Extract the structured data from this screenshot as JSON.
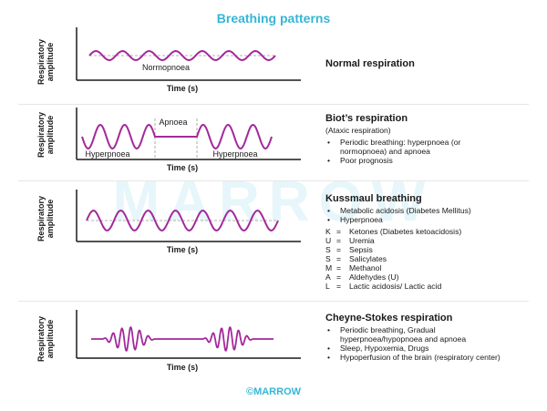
{
  "title": "Breathing patterns",
  "watermark": "MARROW",
  "footer": "©MARROW",
  "colors": {
    "accent": "#35b6d6",
    "wave": "#a3299b",
    "axis": "#1a1a1a"
  },
  "axis": {
    "y_label_line1": "Respiratory",
    "y_label_line2": "amplitude",
    "x_label": "Time (s)"
  },
  "panels": [
    {
      "title": "Normal respiration",
      "graph_labels": [
        "Normopnoea"
      ]
    },
    {
      "title": "Biot’s respiration",
      "subtitle": "(Ataxic respiration)",
      "graph_labels": [
        "Apnoea",
        "Hyperpnoea",
        "Hyperpnoea"
      ],
      "bullets": [
        "Periodic breathing: hyperpnoea (or normopnoea) and apnoea",
        "Poor prognosis"
      ]
    },
    {
      "title": "Kussmaul breathing",
      "bullets": [
        "Metabolic acidosis (Diabetes Mellitus)",
        "Hyperpnoea"
      ],
      "mnemonic": [
        {
          "letter": "K",
          "text": "Ketones (Diabetes ketoacidosis)"
        },
        {
          "letter": "U",
          "text": "Uremia"
        },
        {
          "letter": "S",
          "text": "Sepsis"
        },
        {
          "letter": "S",
          "text": "Salicylates"
        },
        {
          "letter": "M",
          "text": "Methanol"
        },
        {
          "letter": "A",
          "text": "Aldehydes (U)"
        },
        {
          "letter": "L",
          "text": "Lactic acidosis/ Lactic acid"
        }
      ]
    },
    {
      "title": "Cheyne-Stokes respiration",
      "bullets": [
        "Periodic breathing, Gradual hyperpnoea/hypopnoea and apnoea",
        "Sleep, Hypoxemia, Drugs",
        "Hypoperfusion of the brain (respiratory center)"
      ]
    }
  ]
}
